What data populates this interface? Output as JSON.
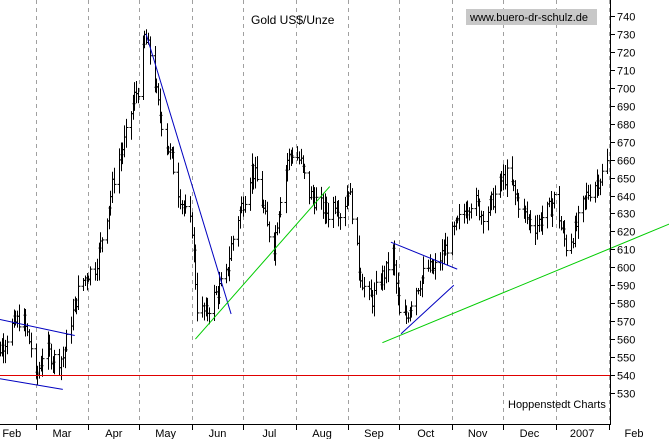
{
  "chart_data": {
    "type": "ohlc",
    "title": "Gold US$/Unze",
    "watermark": "www.buero-dr-schulz.de",
    "source": "Hoppenstedt Charts",
    "ylim": [
      523,
      748
    ],
    "y_ticks": [
      530,
      540,
      550,
      560,
      570,
      580,
      590,
      600,
      610,
      620,
      630,
      640,
      650,
      660,
      670,
      680,
      690,
      700,
      710,
      720,
      730,
      740
    ],
    "x_labels": [
      {
        "label": "Feb",
        "day": 0
      },
      {
        "label": "Mar",
        "day": 28
      },
      {
        "label": "Apr",
        "day": 59
      },
      {
        "label": "May",
        "day": 89
      },
      {
        "label": "Jun",
        "day": 120
      },
      {
        "label": "Jul",
        "day": 150
      },
      {
        "label": "Aug",
        "day": 181
      },
      {
        "label": "Sep",
        "day": 212
      },
      {
        "label": "Oct",
        "day": 242
      },
      {
        "label": "Nov",
        "day": 273
      },
      {
        "label": "Dec",
        "day": 303
      },
      {
        "label": "2007",
        "day": 334
      },
      {
        "label": "Feb",
        "day": 365
      }
    ],
    "grid": {
      "vertical": "dashed",
      "horizontal": "none"
    },
    "colors": {
      "price": "#000000",
      "resistance": "#0000c0",
      "support": "#00cc00",
      "level": "#e00000",
      "grid": "#a0a0a0"
    },
    "level_line": {
      "value": 540
    },
    "trend_lines": [
      {
        "kind": "resistance",
        "from": {
          "day": -8,
          "value": 574
        },
        "to": {
          "day": 51,
          "value": 562
        }
      },
      {
        "kind": "resistance",
        "from": {
          "day": -6,
          "value": 540
        },
        "to": {
          "day": 44,
          "value": 532
        }
      },
      {
        "kind": "resistance",
        "from": {
          "day": 93,
          "value": 730
        },
        "to": {
          "day": 143,
          "value": 574
        }
      },
      {
        "kind": "support",
        "from": {
          "day": 122,
          "value": 560
        },
        "to": {
          "day": 201,
          "value": 645
        }
      },
      {
        "kind": "resistance",
        "from": {
          "day": 237,
          "value": 614
        },
        "to": {
          "day": 276,
          "value": 599
        }
      },
      {
        "kind": "resistance",
        "from": {
          "day": 243,
          "value": 563
        },
        "to": {
          "day": 274,
          "value": 590
        }
      },
      {
        "kind": "support",
        "from": {
          "day": 232,
          "value": 558
        },
        "to": {
          "day": 403,
          "value": 625
        }
      }
    ],
    "price_path": [
      [
        0,
        548
      ],
      [
        8,
        556
      ],
      [
        14,
        567
      ],
      [
        20,
        573
      ],
      [
        26,
        552
      ],
      [
        28,
        537
      ],
      [
        33,
        555
      ],
      [
        40,
        548
      ],
      [
        44,
        550
      ],
      [
        47,
        563
      ],
      [
        54,
        590
      ],
      [
        59,
        597
      ],
      [
        63,
        600
      ],
      [
        69,
        625
      ],
      [
        74,
        650
      ],
      [
        81,
        673
      ],
      [
        86,
        695
      ],
      [
        89,
        702
      ],
      [
        92,
        728
      ],
      [
        96,
        716
      ],
      [
        100,
        690
      ],
      [
        104,
        672
      ],
      [
        108,
        660
      ],
      [
        112,
        643
      ],
      [
        116,
        630
      ],
      [
        120,
        622
      ],
      [
        123,
        578
      ],
      [
        128,
        574
      ],
      [
        132,
        582
      ],
      [
        137,
        590
      ],
      [
        140,
        595
      ],
      [
        143,
        612
      ],
      [
        147,
        628
      ],
      [
        151,
        640
      ],
      [
        155,
        655
      ],
      [
        159,
        646
      ],
      [
        164,
        622
      ],
      [
        168,
        612
      ],
      [
        172,
        640
      ],
      [
        176,
        660
      ],
      [
        180,
        665
      ],
      [
        184,
        658
      ],
      [
        188,
        642
      ],
      [
        192,
        638
      ],
      [
        196,
        634
      ],
      [
        200,
        630
      ],
      [
        204,
        637
      ],
      [
        208,
        628
      ],
      [
        212,
        645
      ],
      [
        215,
        625
      ],
      [
        218,
        600
      ],
      [
        222,
        585
      ],
      [
        226,
        582
      ],
      [
        230,
        592
      ],
      [
        234,
        598
      ],
      [
        238,
        608
      ],
      [
        242,
        573
      ],
      [
        246,
        572
      ],
      [
        250,
        585
      ],
      [
        254,
        592
      ],
      [
        258,
        600
      ],
      [
        262,
        598
      ],
      [
        266,
        605
      ],
      [
        270,
        612
      ],
      [
        274,
        620
      ],
      [
        278,
        628
      ],
      [
        282,
        635
      ],
      [
        286,
        638
      ],
      [
        290,
        630
      ],
      [
        294,
        632
      ],
      [
        298,
        640
      ],
      [
        302,
        648
      ],
      [
        306,
        652
      ],
      [
        310,
        640
      ],
      [
        314,
        632
      ],
      [
        318,
        626
      ],
      [
        322,
        623
      ],
      [
        326,
        628
      ],
      [
        330,
        632
      ],
      [
        334,
        640
      ],
      [
        337,
        622
      ],
      [
        340,
        612
      ],
      [
        344,
        618
      ],
      [
        348,
        628
      ],
      [
        352,
        640
      ],
      [
        356,
        646
      ],
      [
        360,
        650
      ],
      [
        364,
        658
      ],
      [
        368,
        656
      ],
      [
        371,
        660
      ],
      [
        373,
        665
      ],
      [
        375,
        671
      ]
    ]
  }
}
